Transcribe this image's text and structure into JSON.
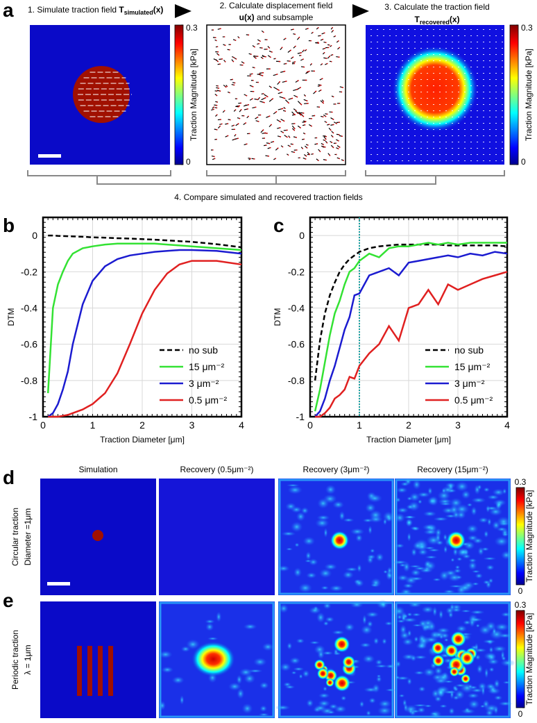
{
  "panel_a": {
    "panel": "a",
    "step1": {
      "text": "1. Simulate traction field ",
      "symbol": "T",
      "subscript": "simulated",
      "arg": "(x)"
    },
    "step2": {
      "line1": "2. Calculate displacement field",
      "symbol": "u(x)",
      "rest": " and subsample"
    },
    "step3": {
      "line1": "3. Calculate the traction field",
      "symbol": "T",
      "subscript": "recovered",
      "arg": "(x)"
    },
    "step4": "4. Compare simulated and recovered traction fields"
  },
  "colorbar": {
    "lim": [
      0,
      0.3
    ],
    "ticks": [
      0,
      0.3
    ],
    "label": "Traction Magnitude [kPa]"
  },
  "chart_data": [
    {
      "type": "line",
      "panel": "b",
      "xlabel": "Traction Diameter [μm]",
      "ylabel": "DTM",
      "xlim": [
        0,
        4
      ],
      "ylim": [
        -1,
        0.1
      ],
      "xticks": [
        0,
        1,
        2,
        3,
        4
      ],
      "yticks": [
        -1,
        -0.8,
        -0.6,
        -0.4,
        -0.2,
        0
      ],
      "grid": true,
      "legend": "lower right",
      "x": [
        0.1,
        0.2,
        0.3,
        0.4,
        0.5,
        0.6,
        0.8,
        1,
        1.25,
        1.5,
        1.75,
        2,
        2.25,
        2.5,
        2.75,
        3,
        3.5,
        4
      ],
      "series": [
        {
          "name": "no sub",
          "color": "#000000",
          "style": "dashed",
          "values": [
            0,
            0,
            -0.002,
            -0.003,
            -0.004,
            -0.005,
            -0.007,
            -0.01,
            -0.012,
            -0.015,
            -0.017,
            -0.02,
            -0.023,
            -0.027,
            -0.031,
            -0.035,
            -0.048,
            -0.065
          ]
        },
        {
          "name": "15 μm⁻²",
          "color": "#33e233",
          "style": "solid",
          "values": [
            -0.87,
            -0.4,
            -0.27,
            -0.2,
            -0.14,
            -0.1,
            -0.07,
            -0.06,
            -0.05,
            -0.045,
            -0.045,
            -0.045,
            -0.045,
            -0.05,
            -0.055,
            -0.06,
            -0.07,
            -0.08
          ]
        },
        {
          "name": "3 μm⁻²",
          "color": "#1b1bd0",
          "style": "solid",
          "values": [
            -1,
            -0.98,
            -0.93,
            -0.85,
            -0.75,
            -0.6,
            -0.38,
            -0.25,
            -0.17,
            -0.13,
            -0.11,
            -0.1,
            -0.09,
            -0.085,
            -0.08,
            -0.08,
            -0.085,
            -0.1
          ]
        },
        {
          "name": "0.5 μm⁻²",
          "color": "#e02020",
          "style": "solid",
          "values": [
            -1,
            -1,
            -1,
            -0.995,
            -0.99,
            -0.98,
            -0.96,
            -0.93,
            -0.87,
            -0.76,
            -0.6,
            -0.43,
            -0.3,
            -0.21,
            -0.16,
            -0.14,
            -0.14,
            -0.16
          ]
        }
      ]
    },
    {
      "type": "line",
      "panel": "c",
      "xlabel": "Traction Diameter [μm]",
      "ylabel": "DTM",
      "xlim": [
        0,
        4
      ],
      "ylim": [
        -1,
        0.1
      ],
      "xticks": [
        0,
        1,
        2,
        3,
        4
      ],
      "yticks": [
        -1,
        -0.8,
        -0.6,
        -0.4,
        -0.2,
        0
      ],
      "grid": true,
      "legend": "lower right",
      "marker_line": {
        "x": 1,
        "color": "#17a0a0",
        "style": "dotted"
      },
      "x": [
        0.1,
        0.2,
        0.3,
        0.4,
        0.5,
        0.6,
        0.7,
        0.8,
        0.9,
        1,
        1.2,
        1.4,
        1.6,
        1.8,
        2,
        2.2,
        2.4,
        2.6,
        2.8,
        3,
        3.25,
        3.5,
        3.75,
        4
      ],
      "series": [
        {
          "name": "no sub",
          "color": "#000000",
          "style": "dashed",
          "values": [
            -0.8,
            -0.58,
            -0.43,
            -0.33,
            -0.26,
            -0.2,
            -0.16,
            -0.13,
            -0.11,
            -0.09,
            -0.07,
            -0.06,
            -0.055,
            -0.05,
            -0.05,
            -0.05,
            -0.05,
            -0.05,
            -0.055,
            -0.055,
            -0.055,
            -0.055,
            -0.055,
            -0.06
          ]
        },
        {
          "name": "15 μm⁻²",
          "color": "#33e233",
          "style": "solid",
          "values": [
            -0.97,
            -0.85,
            -0.7,
            -0.55,
            -0.43,
            -0.36,
            -0.27,
            -0.2,
            -0.18,
            -0.14,
            -0.1,
            -0.12,
            -0.07,
            -0.06,
            -0.06,
            -0.05,
            -0.04,
            -0.05,
            -0.04,
            -0.05,
            -0.04,
            -0.04,
            -0.04,
            -0.04
          ]
        },
        {
          "name": "3 μm⁻²",
          "color": "#1b1bd0",
          "style": "solid",
          "values": [
            -1,
            -0.97,
            -0.9,
            -0.8,
            -0.72,
            -0.62,
            -0.52,
            -0.45,
            -0.33,
            -0.32,
            -0.22,
            -0.2,
            -0.18,
            -0.22,
            -0.15,
            -0.14,
            -0.13,
            -0.12,
            -0.11,
            -0.12,
            -0.1,
            -0.11,
            -0.09,
            -0.1
          ]
        },
        {
          "name": "0.5 μm⁻²",
          "color": "#e02020",
          "style": "solid",
          "values": [
            -1,
            -1,
            -0.98,
            -0.95,
            -0.9,
            -0.88,
            -0.85,
            -0.78,
            -0.79,
            -0.72,
            -0.65,
            -0.6,
            -0.5,
            -0.58,
            -0.4,
            -0.38,
            -0.3,
            -0.38,
            -0.27,
            -0.3,
            -0.27,
            -0.24,
            -0.22,
            -0.2
          ]
        }
      ]
    }
  ],
  "panel_de": {
    "columns": [
      "Simulation",
      "Recovery (0.5μm⁻²)",
      "Recovery (3μm⁻²)",
      "Recovery (15μm⁻²)"
    ],
    "rows": [
      {
        "panel": "d",
        "line1": "Circular traction",
        "line2": "Diameter =1μm"
      },
      {
        "panel": "e",
        "line1": "Periodic traction",
        "line2": "λ = 1μm"
      }
    ]
  }
}
